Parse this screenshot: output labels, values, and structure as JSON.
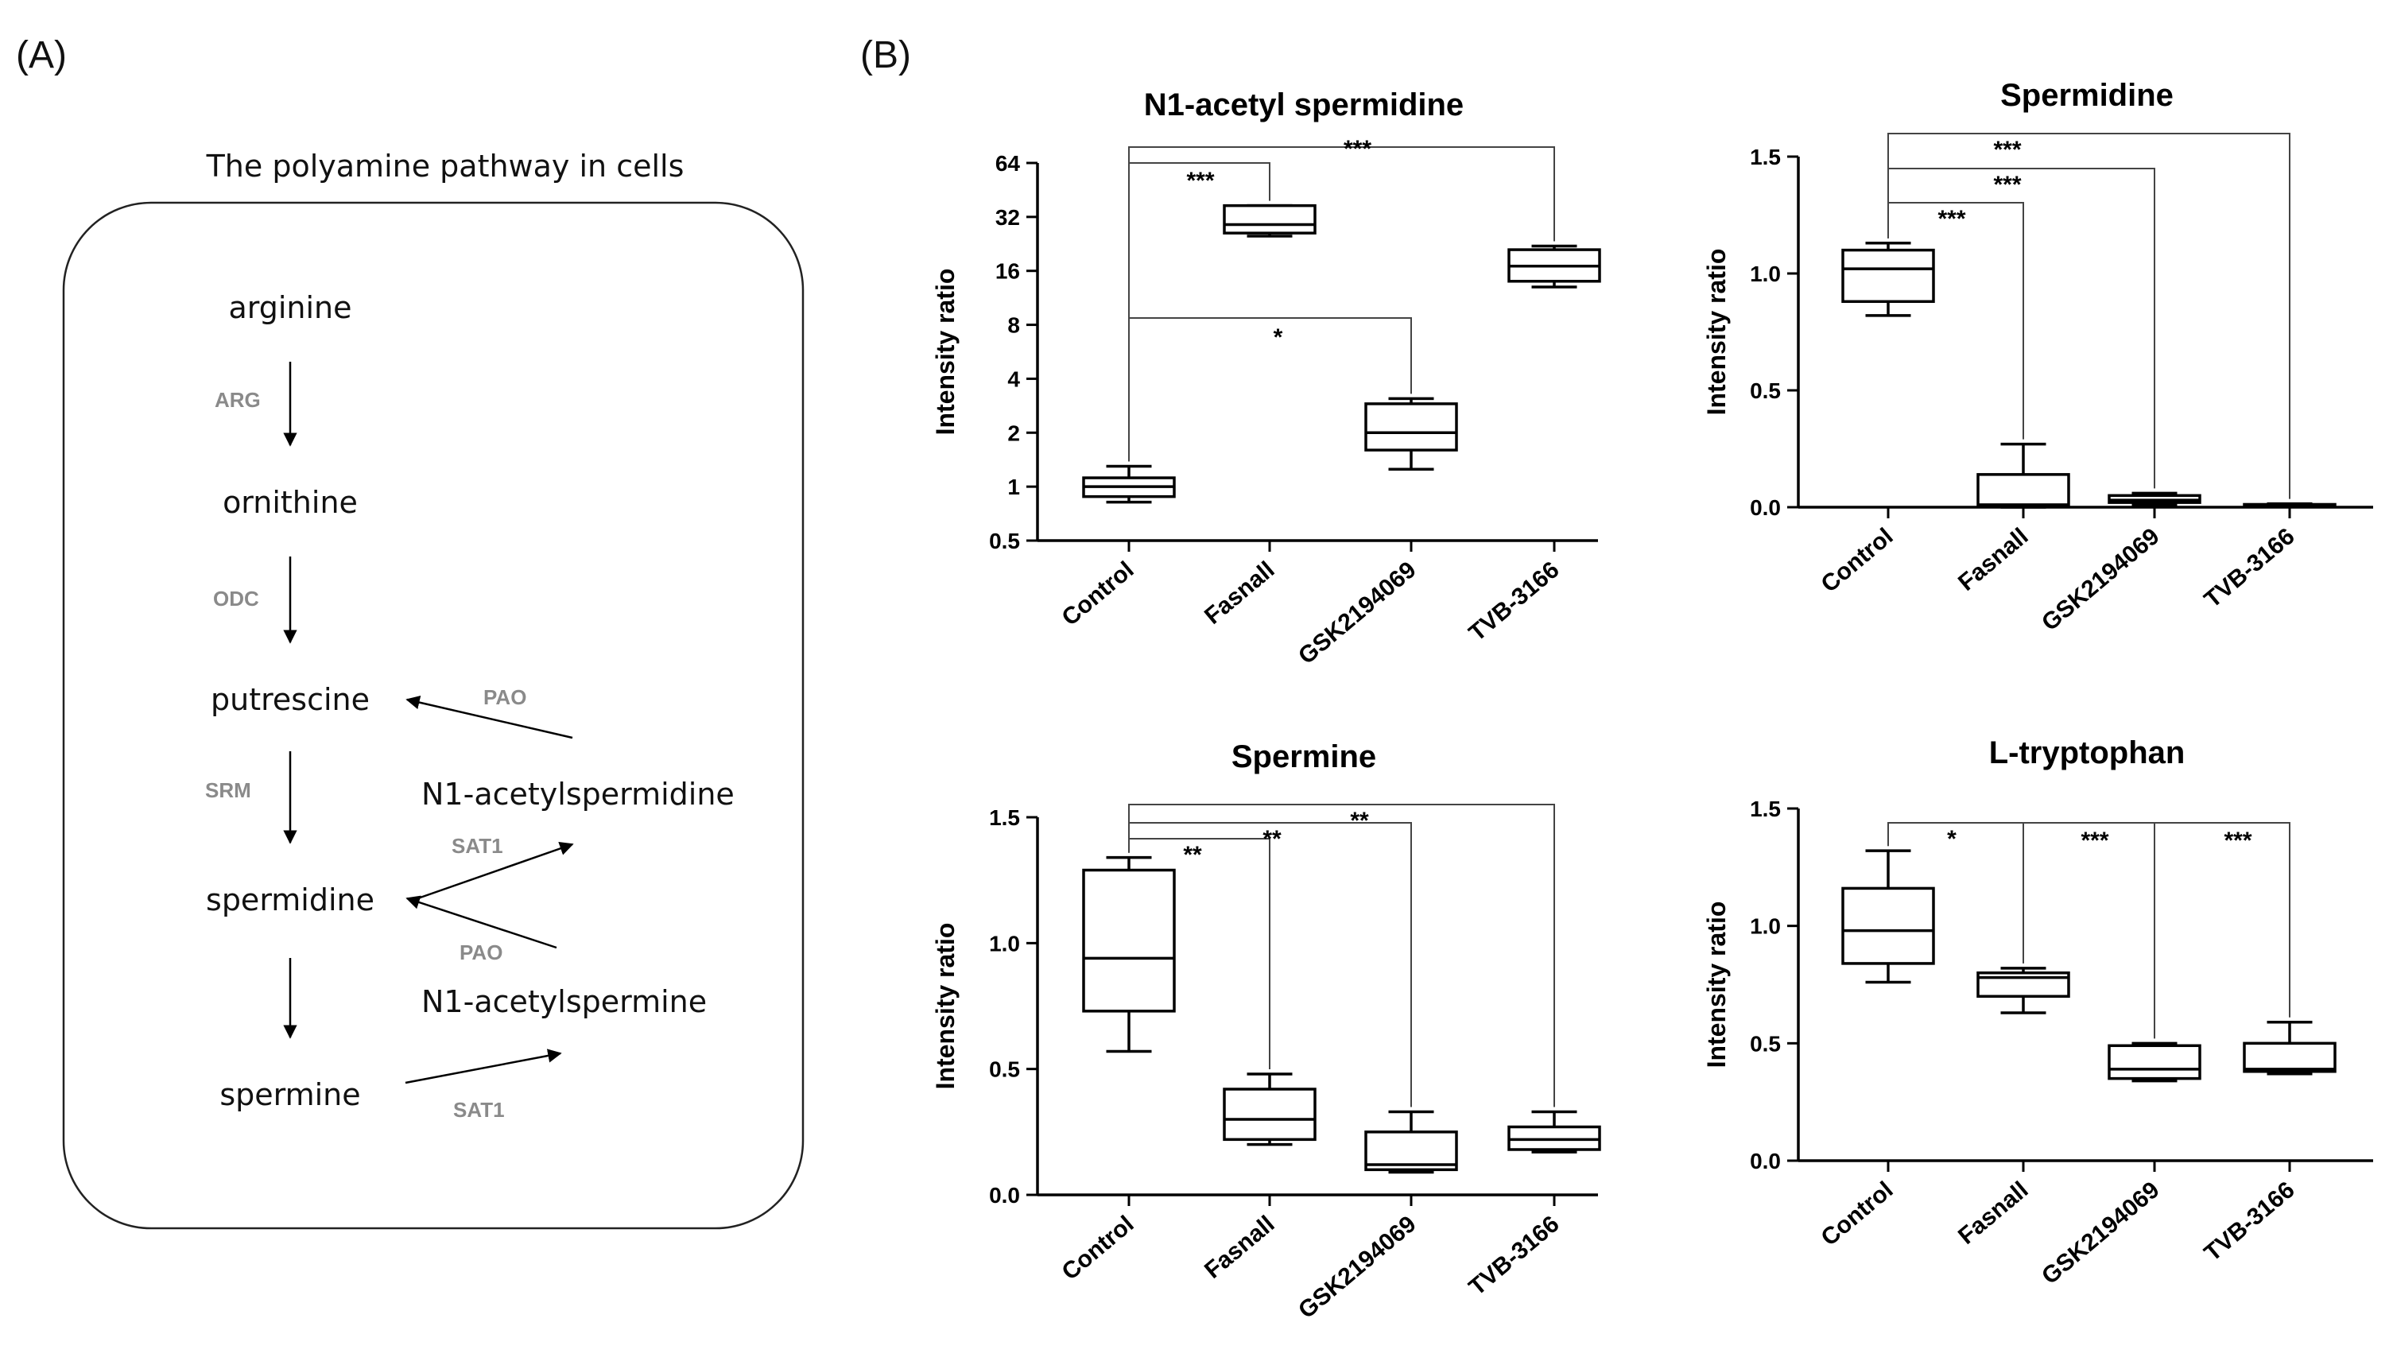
{
  "panel_a": {
    "label": "(A)",
    "title": "The polyamine pathway in cells",
    "nodes": {
      "arginine": "arginine",
      "ornithine": "ornithine",
      "putrescine": "putrescine",
      "spermidine": "spermidine",
      "spermine": "spermine",
      "n1_acetylspermidine": "N1-acetylspermidine",
      "n1_acetylspermine": "N1-acetylspermine"
    },
    "enzymes": {
      "arg": "ARG",
      "odc": "ODC",
      "srm": "SRM",
      "pao_top": "PAO",
      "sat1_mid": "SAT1",
      "pao_mid": "PAO",
      "sat1_bottom": "SAT1"
    }
  },
  "panel_b": {
    "label": "(B)"
  },
  "chart_data": [
    {
      "type": "box",
      "title": "N1-acetyl spermidine",
      "ylabel": "Intensity ratio",
      "yscale": "log2",
      "ylim": [
        0.5,
        64
      ],
      "yticks": [
        0.5,
        1,
        2,
        4,
        8,
        16,
        32,
        64
      ],
      "ytick_labels": [
        "0.5",
        "1",
        "2",
        "4",
        "8",
        "16",
        "32",
        "64"
      ],
      "categories": [
        "Control",
        "Fasnall",
        "GSK2194069",
        "TVB-3166"
      ],
      "boxes": [
        {
          "min": 0.82,
          "q1": 0.88,
          "median": 1.0,
          "q3": 1.12,
          "max": 1.3
        },
        {
          "min": 25,
          "q1": 26,
          "median": 29,
          "q3": 37,
          "max": 37
        },
        {
          "min": 1.25,
          "q1": 1.6,
          "median": 2.0,
          "q3": 2.9,
          "max": 3.1
        },
        {
          "min": 13,
          "q1": 14,
          "median": 17,
          "q3": 21,
          "max": 22
        }
      ],
      "significance": [
        {
          "to": "Fasnall",
          "label": "***"
        },
        {
          "to": "TVB-3166",
          "label": "***"
        },
        {
          "to": "GSK2194069",
          "label": "*"
        }
      ]
    },
    {
      "type": "box",
      "title": "Spermidine",
      "ylabel": "Intensity ratio",
      "yscale": "linear",
      "ylim": [
        0,
        1.5
      ],
      "yticks": [
        0,
        0.5,
        1.0,
        1.5
      ],
      "ytick_labels": [
        "0.0",
        "0.5",
        "1.0",
        "1.5"
      ],
      "categories": [
        "Control",
        "Fasnall",
        "GSK2194069",
        "TVB-3166"
      ],
      "boxes": [
        {
          "min": 0.82,
          "q1": 0.88,
          "median": 1.02,
          "q3": 1.1,
          "max": 1.13
        },
        {
          "min": 0.0,
          "q1": 0.01,
          "median": 0.01,
          "q3": 0.14,
          "max": 0.27
        },
        {
          "min": 0.01,
          "q1": 0.02,
          "median": 0.03,
          "q3": 0.05,
          "max": 0.06
        },
        {
          "min": 0.004,
          "q1": 0.007,
          "median": 0.009,
          "q3": 0.012,
          "max": 0.015
        }
      ],
      "significance": [
        {
          "to": "Fasnall",
          "label": "***"
        },
        {
          "to": "GSK2194069",
          "label": "***"
        },
        {
          "to": "TVB-3166",
          "label": "***"
        }
      ]
    },
    {
      "type": "box",
      "title": "Spermine",
      "ylabel": "Intensity ratio",
      "yscale": "linear",
      "ylim": [
        0,
        1.5
      ],
      "yticks": [
        0,
        0.5,
        1.0,
        1.5
      ],
      "ytick_labels": [
        "0.0",
        "0.5",
        "1.0",
        "1.5"
      ],
      "categories": [
        "Control",
        "Fasnall",
        "GSK2194069",
        "TVB-3166"
      ],
      "boxes": [
        {
          "min": 0.57,
          "q1": 0.73,
          "median": 0.94,
          "q3": 1.29,
          "max": 1.34
        },
        {
          "min": 0.2,
          "q1": 0.22,
          "median": 0.3,
          "q3": 0.42,
          "max": 0.48
        },
        {
          "min": 0.09,
          "q1": 0.1,
          "median": 0.12,
          "q3": 0.25,
          "max": 0.33
        },
        {
          "min": 0.17,
          "q1": 0.18,
          "median": 0.22,
          "q3": 0.27,
          "max": 0.33
        }
      ],
      "significance": [
        {
          "to": "Fasnall",
          "label": "**"
        },
        {
          "to": "GSK2194069",
          "label": "**"
        },
        {
          "to": "TVB-3166",
          "label": "**"
        }
      ]
    },
    {
      "type": "box",
      "title": "L-tryptophan",
      "ylabel": "Intensity ratio",
      "yscale": "linear",
      "ylim": [
        0,
        1.5
      ],
      "yticks": [
        0,
        0.5,
        1.0,
        1.5
      ],
      "ytick_labels": [
        "0.0",
        "0.5",
        "1.0",
        "1.5"
      ],
      "categories": [
        "Control",
        "Fasnall",
        "GSK2194069",
        "TVB-3166"
      ],
      "boxes": [
        {
          "min": 0.76,
          "q1": 0.84,
          "median": 0.98,
          "q3": 1.16,
          "max": 1.32
        },
        {
          "min": 0.63,
          "q1": 0.7,
          "median": 0.78,
          "q3": 0.8,
          "max": 0.82
        },
        {
          "min": 0.34,
          "q1": 0.35,
          "median": 0.39,
          "q3": 0.49,
          "max": 0.5
        },
        {
          "min": 0.37,
          "q1": 0.38,
          "median": 0.39,
          "q3": 0.5,
          "max": 0.59
        }
      ],
      "significance": [
        {
          "to": "Fasnall",
          "label": "*"
        },
        {
          "to": "GSK2194069",
          "label": "***"
        },
        {
          "to": "TVB-3166",
          "label": "***"
        }
      ]
    }
  ]
}
